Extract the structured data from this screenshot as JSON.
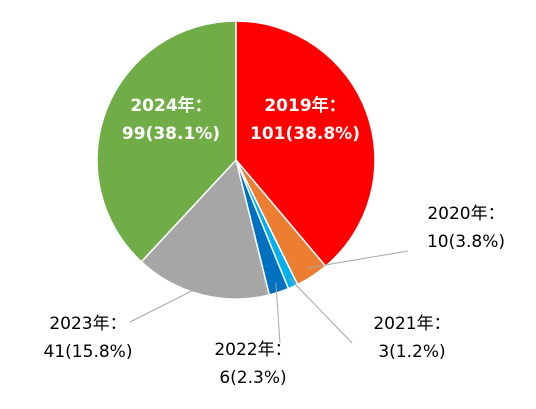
{
  "chart_data": {
    "type": "pie",
    "start_angle_deg": 0,
    "direction": "clockwise",
    "slices": [
      {
        "year": "2019年：",
        "count": 101,
        "percent": "101(38.8%)",
        "color": "#ff0000",
        "label_inside": true
      },
      {
        "year": "2020年：",
        "count": 10,
        "percent": "10(3.8%)",
        "color": "#ed7d31",
        "label_inside": false
      },
      {
        "year": "2021年：",
        "count": 3,
        "percent": "3(1.2%)",
        "color": "#00b0f0",
        "label_inside": false
      },
      {
        "year": "2022年：",
        "count": 6,
        "percent": "6(2.3%)",
        "color": "#0070c0",
        "label_inside": false
      },
      {
        "year": "2023年：",
        "count": 41,
        "percent": "41(15.8%)",
        "color": "#a6a6a6",
        "label_inside": false
      },
      {
        "year": "2024年：",
        "count": 99,
        "percent": "99(38.1%)",
        "color": "#70ad47",
        "label_inside": true
      }
    ]
  }
}
